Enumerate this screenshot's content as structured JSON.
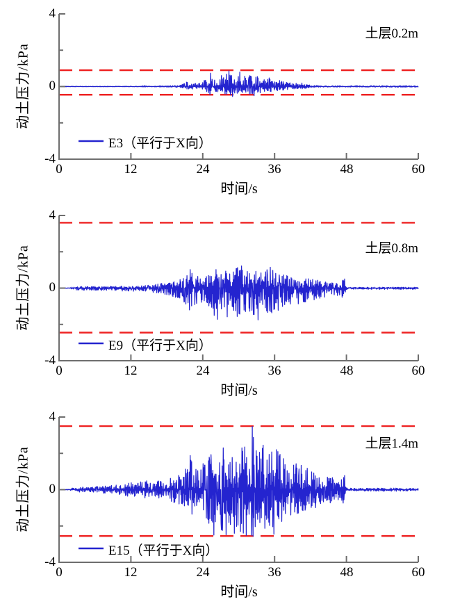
{
  "colors": {
    "signal": "#2424cf",
    "limit": "#ee2222",
    "axis": "#6e6e6e",
    "text": "#000000"
  },
  "chart_data": [
    {
      "type": "line",
      "panel": "top",
      "annotation": "土层0.2m",
      "xlabel": "时间/s",
      "ylabel": "动土压力/kPa",
      "xlim": [
        0,
        60
      ],
      "ylim": [
        -4,
        4
      ],
      "xticks": [
        0,
        12,
        24,
        36,
        48,
        60
      ],
      "yticks": [
        4,
        0,
        -4
      ],
      "yticks_minor": [
        2,
        -2
      ],
      "legend": {
        "position": "lower-left"
      },
      "limit_lines": {
        "upper": 0.9,
        "lower": -0.45,
        "color": "#ee2222",
        "style": "dashed"
      },
      "series": [
        {
          "name": "E3（平行于X向）",
          "color": "#2424cf",
          "seed": 11,
          "neg_ratio": 0.68,
          "clamp": [
            -0.56,
            0.88
          ],
          "envelope": [
            [
              0,
              0.015
            ],
            [
              13.8,
              0.015
            ],
            [
              14.2,
              0.07
            ],
            [
              14.8,
              0.02
            ],
            [
              16,
              0.025
            ],
            [
              18,
              0.04
            ],
            [
              19.5,
              0.06
            ],
            [
              20.5,
              0.09
            ],
            [
              21,
              0.22
            ],
            [
              21.8,
              0.32
            ],
            [
              22.5,
              0.18
            ],
            [
              23.3,
              0.16
            ],
            [
              24,
              0.3
            ],
            [
              24.8,
              0.5
            ],
            [
              25.3,
              0.72
            ],
            [
              26,
              0.38
            ],
            [
              26.8,
              0.45
            ],
            [
              27.5,
              0.55
            ],
            [
              28.3,
              0.8
            ],
            [
              29,
              0.55
            ],
            [
              29.8,
              0.62
            ],
            [
              30.5,
              0.78
            ],
            [
              31.2,
              0.5
            ],
            [
              32,
              0.65
            ],
            [
              32.8,
              0.55
            ],
            [
              33.5,
              0.6
            ],
            [
              34.2,
              0.45
            ],
            [
              35,
              0.5
            ],
            [
              36,
              0.3
            ],
            [
              36.8,
              0.4
            ],
            [
              37.5,
              0.28
            ],
            [
              38.5,
              0.22
            ],
            [
              39.5,
              0.18
            ],
            [
              40.5,
              0.2
            ],
            [
              41.5,
              0.12
            ],
            [
              42.5,
              0.08
            ],
            [
              43.5,
              0.05
            ],
            [
              45,
              0.04
            ],
            [
              50,
              0.04
            ],
            [
              55,
              0.05
            ],
            [
              60,
              0.04
            ]
          ],
          "spikes": [
            [
              25.3,
              0.74
            ],
            [
              27.1,
              0.6
            ],
            [
              28.35,
              0.86
            ],
            [
              29.0,
              -0.55
            ],
            [
              30.2,
              0.8
            ],
            [
              32.6,
              -0.5
            ]
          ]
        }
      ]
    },
    {
      "type": "line",
      "panel": "middle",
      "annotation": "土层0.8m",
      "xlabel": "时间/s",
      "ylabel": "动土压力/kPa",
      "xlim": [
        0,
        60
      ],
      "ylim": [
        -4,
        4
      ],
      "xticks": [
        0,
        12,
        24,
        36,
        48,
        60
      ],
      "yticks": [
        4,
        0,
        -4
      ],
      "yticks_minor": [
        2,
        -2
      ],
      "legend": {
        "position": "lower-left"
      },
      "limit_lines": {
        "upper": 3.6,
        "lower": -2.45,
        "color": "#ee2222",
        "style": "dashed"
      },
      "series": [
        {
          "name": "E9（平行于X向）",
          "color": "#2424cf",
          "seed": 29,
          "neg_ratio": 1.4,
          "clamp": [
            -1.82,
            1.25
          ],
          "envelope": [
            [
              0,
              0.01
            ],
            [
              1.8,
              0.015
            ],
            [
              2.2,
              0.07
            ],
            [
              4,
              0.08
            ],
            [
              6,
              0.1
            ],
            [
              8,
              0.09
            ],
            [
              10,
              0.12
            ],
            [
              12,
              0.12
            ],
            [
              14,
              0.14
            ],
            [
              15.5,
              0.18
            ],
            [
              17,
              0.25
            ],
            [
              18.5,
              0.3
            ],
            [
              19.5,
              0.4
            ],
            [
              20.5,
              0.5
            ],
            [
              21.3,
              0.75
            ],
            [
              21.9,
              1.0
            ],
            [
              22.6,
              0.75
            ],
            [
              23.4,
              0.6
            ],
            [
              24.2,
              0.55
            ],
            [
              25,
              0.75
            ],
            [
              25.7,
              0.95
            ],
            [
              26.4,
              1.1
            ],
            [
              27.2,
              0.85
            ],
            [
              28,
              1.05
            ],
            [
              28.8,
              0.9
            ],
            [
              29.6,
              1.1
            ],
            [
              30.4,
              1.2
            ],
            [
              31.2,
              0.95
            ],
            [
              32,
              1.0
            ],
            [
              32.8,
              1.15
            ],
            [
              33.6,
              0.95
            ],
            [
              34.4,
              1.05
            ],
            [
              35.2,
              1.15
            ],
            [
              36,
              0.95
            ],
            [
              36.8,
              0.85
            ],
            [
              37.6,
              0.75
            ],
            [
              38.4,
              0.7
            ],
            [
              39.2,
              0.6
            ],
            [
              40,
              0.65
            ],
            [
              41,
              0.55
            ],
            [
              42,
              0.5
            ],
            [
              43,
              0.45
            ],
            [
              44,
              0.4
            ],
            [
              45,
              0.33
            ],
            [
              46,
              0.28
            ],
            [
              47,
              0.3
            ],
            [
              47.6,
              0.5
            ],
            [
              47.9,
              0.07
            ],
            [
              49,
              0.04
            ],
            [
              52,
              0.05
            ],
            [
              56,
              0.055
            ],
            [
              60,
              0.045
            ]
          ],
          "spikes": [
            [
              21.9,
              1.02
            ],
            [
              25.9,
              -1.5
            ],
            [
              26.45,
              -1.72
            ],
            [
              28.1,
              -1.58
            ],
            [
              30.5,
              1.22
            ],
            [
              33.25,
              -1.75
            ],
            [
              35.3,
              1.15
            ],
            [
              47.7,
              0.5
            ]
          ]
        }
      ]
    },
    {
      "type": "line",
      "panel": "bottom",
      "annotation": "土层1.4m",
      "xlabel": "时间/s",
      "ylabel": "动土压力/kPa",
      "xlim": [
        0,
        60
      ],
      "ylim": [
        -4,
        4
      ],
      "xticks": [
        0,
        12,
        24,
        36,
        48,
        60
      ],
      "yticks": [
        4,
        0,
        -4
      ],
      "yticks_minor": [
        2,
        -2
      ],
      "legend": {
        "position": "lower-left"
      },
      "limit_lines": {
        "upper": 3.5,
        "lower": -2.55,
        "color": "#ee2222",
        "style": "dashed"
      },
      "series": [
        {
          "name": "E15（平行于X向）",
          "color": "#2424cf",
          "seed": 47,
          "neg_ratio": 1.02,
          "clamp": [
            -2.56,
            3.48
          ],
          "envelope": [
            [
              0,
              0.015
            ],
            [
              1.8,
              0.02
            ],
            [
              2.2,
              0.1
            ],
            [
              3,
              0.12
            ],
            [
              4,
              0.14
            ],
            [
              5,
              0.12
            ],
            [
              6,
              0.17
            ],
            [
              7,
              0.19
            ],
            [
              8,
              0.2
            ],
            [
              9,
              0.24
            ],
            [
              10,
              0.28
            ],
            [
              11,
              0.33
            ],
            [
              12,
              0.42
            ],
            [
              13,
              0.38
            ],
            [
              14,
              0.48
            ],
            [
              15,
              0.52
            ],
            [
              16,
              0.48
            ],
            [
              17,
              0.52
            ],
            [
              18,
              0.58
            ],
            [
              19,
              0.68
            ],
            [
              20,
              0.8
            ],
            [
              20.8,
              0.95
            ],
            [
              21.5,
              1.5
            ],
            [
              21.9,
              1.85
            ],
            [
              22.4,
              1.5
            ],
            [
              23,
              1.15
            ],
            [
              23.8,
              1.3
            ],
            [
              24.6,
              1.7
            ],
            [
              25.3,
              1.9
            ],
            [
              25.9,
              2.3
            ],
            [
              26.5,
              1.7
            ],
            [
              27.1,
              2.2
            ],
            [
              27.7,
              2.4
            ],
            [
              28.4,
              1.8
            ],
            [
              29.1,
              2.3
            ],
            [
              29.8,
              2.0
            ],
            [
              30.5,
              2.3
            ],
            [
              31.2,
              2.5
            ],
            [
              31.9,
              2.4
            ],
            [
              32.3,
              3.4
            ],
            [
              32.8,
              2.2
            ],
            [
              33.4,
              2.1
            ],
            [
              34.1,
              2.5
            ],
            [
              34.8,
              2.1
            ],
            [
              35.5,
              2.3
            ],
            [
              36.2,
              2.4
            ],
            [
              37,
              1.9
            ],
            [
              38,
              1.6
            ],
            [
              39,
              1.45
            ],
            [
              40,
              1.5
            ],
            [
              41,
              1.25
            ],
            [
              42,
              1.1
            ],
            [
              43,
              1.0
            ],
            [
              44,
              0.9
            ],
            [
              45,
              0.8
            ],
            [
              46,
              0.68
            ],
            [
              47,
              0.58
            ],
            [
              47.6,
              0.85
            ],
            [
              47.9,
              0.12
            ],
            [
              49,
              0.07
            ],
            [
              52,
              0.08
            ],
            [
              56,
              0.09
            ],
            [
              60,
              0.07
            ]
          ],
          "spikes": [
            [
              21.9,
              1.88
            ],
            [
              25.85,
              -2.5
            ],
            [
              27.4,
              2.3
            ],
            [
              27.9,
              -2.48
            ],
            [
              29.3,
              -2.4
            ],
            [
              30.3,
              -2.3
            ],
            [
              31.0,
              2.35
            ],
            [
              32.3,
              3.48
            ],
            [
              34.1,
              2.45
            ],
            [
              35.9,
              -2.45
            ],
            [
              36.3,
              2.2
            ],
            [
              47.7,
              0.78
            ]
          ]
        }
      ]
    }
  ]
}
